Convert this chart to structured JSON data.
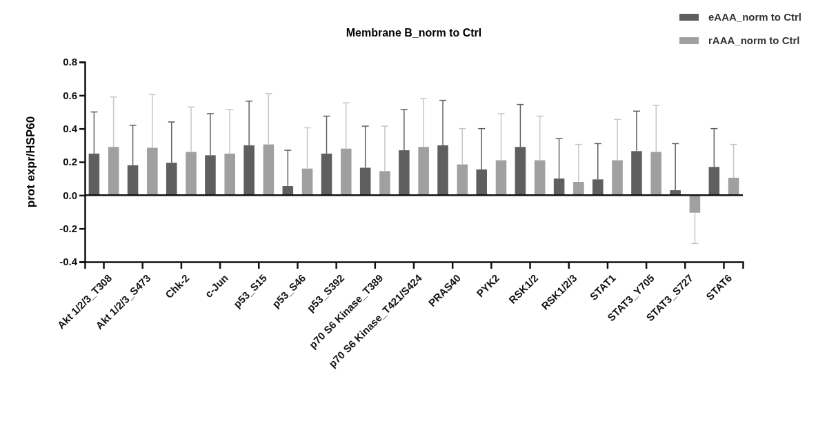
{
  "chart_data": {
    "type": "bar",
    "title": "Membrane B_norm to Ctrl",
    "ylabel": "prot expr/HSP60",
    "categories": [
      "Akt 1/2/3_T308",
      "Akt 1/2/3_S473",
      "Chk-2",
      "c-Jun",
      "p53_S15",
      "p53_S46",
      "p53_S392",
      "p70 S6 Kinase_T389",
      "p70 S6 Kinase_T421/S424",
      "PRAS40",
      "PYK2",
      "RSK1/2",
      "RSK1/2/3",
      "STAT1",
      "STAT3_Y705",
      "STAT3_S727",
      "STAT6"
    ],
    "series": [
      {
        "name": "eAAA_norm to Ctrl",
        "color": "#5f5f5f",
        "values": [
          0.25,
          0.18,
          0.195,
          0.24,
          0.3,
          0.055,
          0.25,
          0.165,
          0.27,
          0.3,
          0.155,
          0.29,
          0.1,
          0.095,
          0.265,
          0.03,
          0.17
        ],
        "errors": [
          [
            0.25,
            0.5
          ],
          [
            0.18,
            0.42
          ],
          [
            0.195,
            0.44
          ],
          [
            0.24,
            0.49
          ],
          [
            0.3,
            0.565
          ],
          [
            0.055,
            0.27
          ],
          [
            0.25,
            0.475
          ],
          [
            0.165,
            0.415
          ],
          [
            0.27,
            0.515
          ],
          [
            0.3,
            0.57
          ],
          [
            0.155,
            0.4
          ],
          [
            0.29,
            0.545
          ],
          [
            0.1,
            0.34
          ],
          [
            0.095,
            0.31
          ],
          [
            0.265,
            0.505
          ],
          [
            0.03,
            0.31
          ],
          [
            0.17,
            0.4
          ]
        ]
      },
      {
        "name": "rAAA_norm to Ctrl",
        "color": "#a0a0a0",
        "values": [
          0.29,
          0.285,
          0.26,
          0.25,
          0.305,
          0.16,
          0.28,
          0.145,
          0.29,
          0.185,
          0.21,
          0.21,
          0.08,
          0.21,
          0.26,
          -0.105,
          0.105
        ],
        "errors": [
          [
            0.29,
            0.59
          ],
          [
            0.285,
            0.605
          ],
          [
            0.26,
            0.53
          ],
          [
            0.25,
            0.515
          ],
          [
            0.305,
            0.61
          ],
          [
            0.16,
            0.405
          ],
          [
            0.28,
            0.555
          ],
          [
            0.145,
            0.415
          ],
          [
            0.29,
            0.58
          ],
          [
            0.185,
            0.4
          ],
          [
            0.21,
            0.49
          ],
          [
            0.21,
            0.475
          ],
          [
            0.08,
            0.305
          ],
          [
            0.21,
            0.455
          ],
          [
            0.26,
            0.54
          ],
          [
            -0.29,
            -0.105
          ],
          [
            0.105,
            0.305
          ]
        ]
      }
    ],
    "ylim": [
      -0.4,
      0.8
    ],
    "yticks": [
      {
        "value": -0.4,
        "label": "-0.4"
      },
      {
        "value": -0.2,
        "label": "-0.2"
      },
      {
        "value": 0,
        "label": "0.0"
      },
      {
        "value": 0.2,
        "label": "0.2"
      },
      {
        "value": 0.4,
        "label": "0.4"
      },
      {
        "value": 0.6,
        "label": "0.6"
      },
      {
        "value": 0.8,
        "label": "0.8"
      }
    ],
    "ref_lines": [
      {
        "axis": "y",
        "value": 0,
        "color": "#111111"
      }
    ],
    "legend": "top right"
  }
}
